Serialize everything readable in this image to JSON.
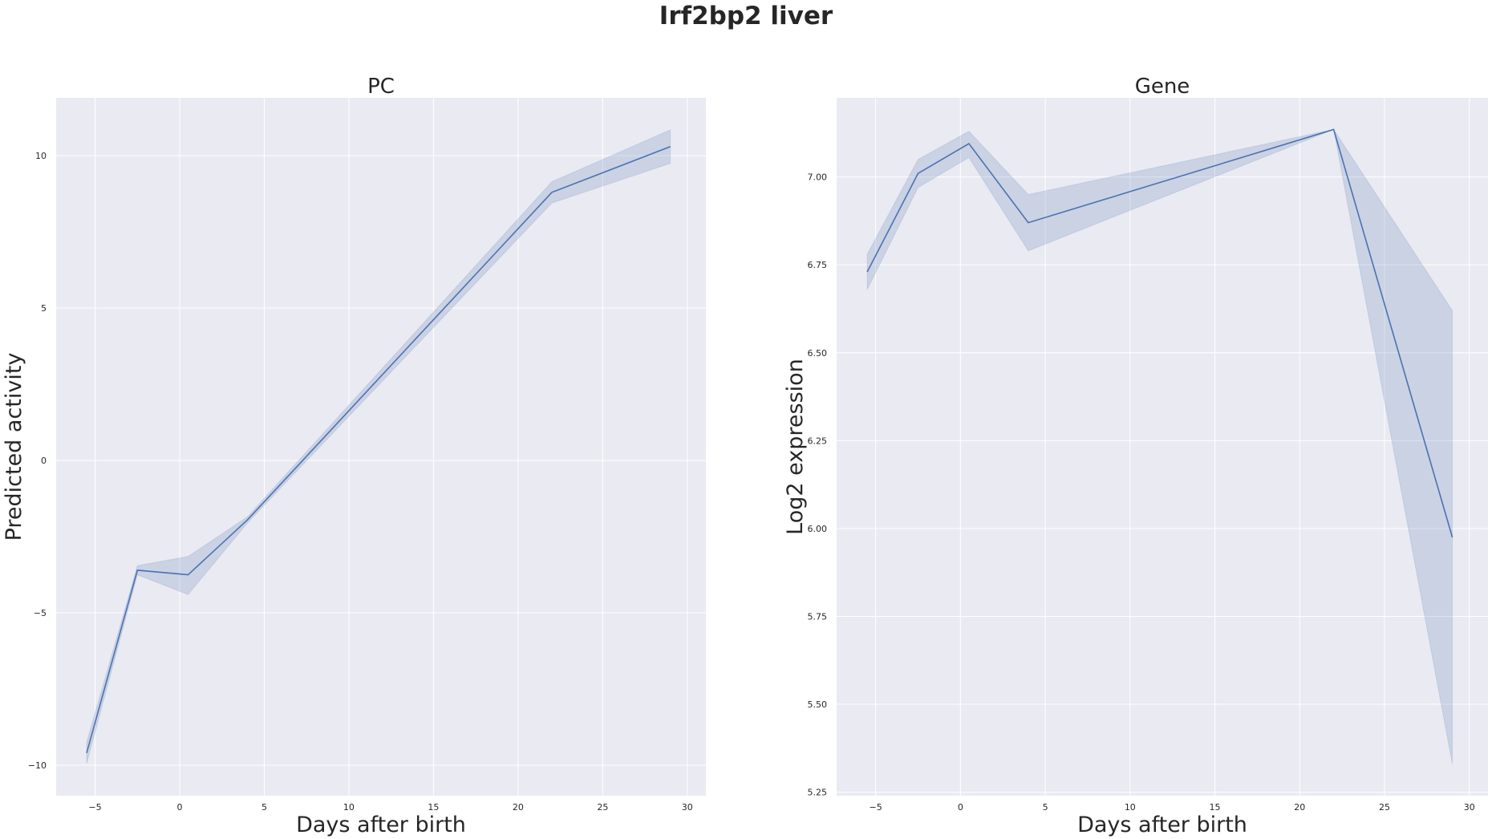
{
  "suptitle": "Irf2bp2 liver",
  "colors": {
    "line": "#4c72b0",
    "band": "#4c72b0",
    "background": "#eaeaf2",
    "grid": "#ffffff"
  },
  "chart_data": [
    {
      "type": "line",
      "title": "PC",
      "xlabel": "Days after birth",
      "ylabel": "Predicted activity",
      "xlim": [
        -7.3,
        31.1
      ],
      "ylim": [
        -11.0,
        11.9
      ],
      "xticks": [
        -5,
        0,
        5,
        10,
        15,
        20,
        25,
        30
      ],
      "xtick_labels": [
        "−5",
        "0",
        "5",
        "10",
        "15",
        "20",
        "25",
        "30"
      ],
      "yticks": [
        -10,
        -5,
        0,
        5,
        10
      ],
      "ytick_labels": [
        "−10",
        "−5",
        "0",
        "5",
        "10"
      ],
      "grid": true,
      "series": [
        {
          "x": [
            -5.5,
            -2.5,
            0.5,
            4,
            22,
            29
          ],
          "y": [
            -9.6,
            -3.6,
            -3.75,
            -1.95,
            8.8,
            10.3
          ],
          "lower": [
            -9.95,
            -3.75,
            -4.4,
            -2.05,
            8.45,
            9.75
          ],
          "upper": [
            -9.25,
            -3.45,
            -3.15,
            -1.85,
            9.15,
            10.85
          ]
        }
      ]
    },
    {
      "type": "line",
      "title": "Gene",
      "xlabel": "Days after birth",
      "ylabel": "Log2 expression",
      "xlim": [
        -7.3,
        31.1
      ],
      "ylim": [
        5.24,
        7.225
      ],
      "xticks": [
        -5,
        0,
        5,
        10,
        15,
        20,
        25,
        30
      ],
      "xtick_labels": [
        "−5",
        "0",
        "5",
        "10",
        "15",
        "20",
        "25",
        "30"
      ],
      "yticks": [
        5.25,
        5.5,
        5.75,
        6.0,
        6.25,
        6.5,
        6.75,
        7.0
      ],
      "ytick_labels": [
        "5.25",
        "5.50",
        "5.75",
        "6.00",
        "6.25",
        "6.50",
        "6.75",
        "7.00"
      ],
      "grid": true,
      "series": [
        {
          "x": [
            -5.5,
            -2.5,
            0.5,
            4,
            22,
            29
          ],
          "y": [
            6.73,
            7.01,
            7.095,
            6.87,
            7.135,
            5.975
          ],
          "lower": [
            6.68,
            6.97,
            7.055,
            6.79,
            7.135,
            5.33
          ],
          "upper": [
            6.78,
            7.05,
            7.13,
            6.95,
            7.135,
            6.62
          ]
        }
      ]
    }
  ]
}
